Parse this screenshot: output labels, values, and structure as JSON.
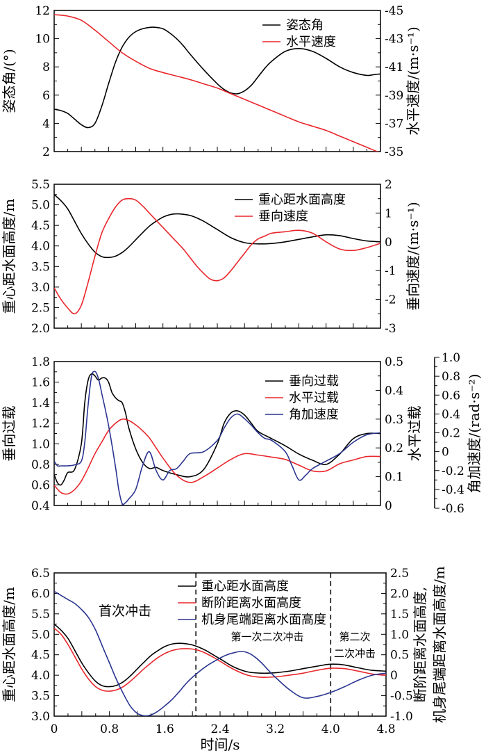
{
  "chart_data": [
    {
      "type": "line",
      "xlim": [
        0,
        4.8
      ],
      "ylim": [
        2,
        12
      ],
      "y2lim": [
        -35,
        -45
      ],
      "yticks": [
        "2",
        "4",
        "6",
        "8",
        "10",
        "12"
      ],
      "y2ticks": [
        "-35",
        "-37",
        "-39",
        "-41",
        "-43",
        "-45"
      ],
      "ylabel": "姿态角/(°)",
      "y2label": "水平速度/(m·s⁻¹)",
      "legend": "top-right",
      "series": [
        {
          "name": "姿态角",
          "color": "#000000",
          "axis": "left",
          "x": [
            0,
            0.1,
            0.2,
            0.3,
            0.4,
            0.5,
            0.6,
            0.7,
            0.8,
            0.9,
            1.0,
            1.1,
            1.2,
            1.3,
            1.4,
            1.5,
            1.6,
            1.7,
            1.8,
            1.9,
            2.0,
            2.2,
            2.4,
            2.5,
            2.6,
            2.7,
            2.8,
            2.9,
            3.0,
            3.1,
            3.2,
            3.4,
            3.6,
            3.8,
            4.0,
            4.2,
            4.4,
            4.6,
            4.7,
            4.8
          ],
          "values": [
            5.0,
            4.9,
            4.7,
            4.3,
            3.9,
            3.7,
            4.0,
            5.2,
            6.8,
            8.3,
            9.4,
            10.1,
            10.5,
            10.7,
            10.8,
            10.8,
            10.7,
            10.4,
            10.0,
            9.5,
            8.9,
            7.8,
            6.8,
            6.4,
            6.15,
            6.1,
            6.3,
            6.7,
            7.3,
            7.9,
            8.4,
            9.1,
            9.3,
            9.1,
            8.6,
            8.0,
            7.6,
            7.4,
            7.45,
            7.5
          ]
        },
        {
          "name": "水平速度",
          "color": "#e8262b",
          "axis": "right",
          "x": [
            0,
            0.2,
            0.4,
            0.6,
            0.8,
            1.0,
            1.2,
            1.4,
            1.6,
            1.8,
            2.0,
            2.2,
            2.4,
            2.6,
            2.8,
            3.0,
            3.2,
            3.4,
            3.6,
            3.8,
            4.0,
            4.2,
            4.4,
            4.6,
            4.8
          ],
          "values": [
            -44.7,
            -44.6,
            -44.3,
            -43.6,
            -42.8,
            -42.0,
            -41.4,
            -40.9,
            -40.6,
            -40.35,
            -40.1,
            -39.8,
            -39.5,
            -39.1,
            -38.7,
            -38.3,
            -37.9,
            -37.5,
            -37.1,
            -36.8,
            -36.5,
            -36.1,
            -35.7,
            -35.3,
            -34.9
          ]
        }
      ]
    },
    {
      "type": "line",
      "xlim": [
        0,
        4.8
      ],
      "ylim": [
        2.0,
        5.5
      ],
      "y2lim": [
        -3,
        2
      ],
      "yticks": [
        "2.0",
        "2.5",
        "3.0",
        "3.5",
        "4.0",
        "4.5",
        "5.0",
        "5.5"
      ],
      "y2ticks": [
        "-3",
        "-2",
        "-1",
        "0",
        "1",
        "2"
      ],
      "ylabel": "重心距水面高度/m",
      "y2label": "垂向速度/(m·s⁻¹)",
      "legend": "top-right",
      "series": [
        {
          "name": "重心距水面高度",
          "color": "#000000",
          "axis": "left",
          "x": [
            0,
            0.1,
            0.2,
            0.3,
            0.4,
            0.5,
            0.6,
            0.7,
            0.8,
            0.9,
            1.0,
            1.1,
            1.2,
            1.3,
            1.4,
            1.5,
            1.6,
            1.7,
            1.8,
            1.9,
            2.0,
            2.1,
            2.2,
            2.3,
            2.4,
            2.6,
            2.8,
            3.0,
            3.2,
            3.4,
            3.6,
            3.8,
            4.0,
            4.2,
            4.4,
            4.6,
            4.8
          ],
          "values": [
            5.25,
            5.1,
            4.9,
            4.6,
            4.3,
            4.05,
            3.85,
            3.74,
            3.72,
            3.75,
            3.84,
            3.98,
            4.15,
            4.32,
            4.48,
            4.6,
            4.7,
            4.76,
            4.78,
            4.77,
            4.74,
            4.68,
            4.6,
            4.5,
            4.4,
            4.2,
            4.08,
            4.05,
            4.06,
            4.1,
            4.16,
            4.22,
            4.27,
            4.25,
            4.18,
            4.12,
            4.1
          ]
        },
        {
          "name": "垂向速度",
          "color": "#e8262b",
          "axis": "right",
          "x": [
            0,
            0.1,
            0.2,
            0.3,
            0.4,
            0.5,
            0.6,
            0.7,
            0.8,
            0.9,
            1.0,
            1.1,
            1.2,
            1.3,
            1.4,
            1.5,
            1.6,
            1.7,
            1.8,
            1.9,
            2.0,
            2.1,
            2.2,
            2.3,
            2.4,
            2.5,
            2.6,
            2.7,
            2.8,
            2.9,
            3.0,
            3.1,
            3.2,
            3.4,
            3.6,
            3.8,
            4.0,
            4.2,
            4.4,
            4.6,
            4.8
          ],
          "values": [
            -1.6,
            -2.0,
            -2.3,
            -2.5,
            -2.2,
            -1.4,
            -0.5,
            0.3,
            0.8,
            1.2,
            1.45,
            1.5,
            1.45,
            1.25,
            1.0,
            0.75,
            0.5,
            0.25,
            0.0,
            -0.25,
            -0.55,
            -0.85,
            -1.1,
            -1.3,
            -1.35,
            -1.25,
            -1.0,
            -0.7,
            -0.4,
            -0.1,
            0.1,
            0.2,
            0.3,
            0.35,
            0.4,
            0.3,
            0.0,
            -0.25,
            -0.3,
            -0.2,
            -0.05
          ]
        }
      ]
    },
    {
      "type": "line",
      "xlim": [
        0,
        4.8
      ],
      "ylim": [
        0.4,
        1.8
      ],
      "y2lim": [
        0,
        0.5
      ],
      "y3lim": [
        -0.6,
        1.0
      ],
      "yticks": [
        "0.4",
        "0.6",
        "0.8",
        "1.0",
        "1.2",
        "1.4",
        "1.6",
        "1.8"
      ],
      "y2ticks": [
        "0",
        "0.1",
        "0.2",
        "0.3",
        "0.4",
        "0.5"
      ],
      "y3ticks": [
        "-0.6",
        "-0.4",
        "-0.2",
        "0",
        "0.2",
        "0.4",
        "0.6",
        "0.8",
        "1.0"
      ],
      "ylabel": "垂向过载",
      "y2label": "水平过载",
      "y3label": "角加速度/(rad·s⁻²)",
      "legend": "top-right",
      "series": [
        {
          "name": "垂向过载",
          "color": "#000000",
          "axis": "left",
          "x": [
            0,
            0.05,
            0.1,
            0.15,
            0.2,
            0.3,
            0.4,
            0.45,
            0.5,
            0.55,
            0.6,
            0.65,
            0.7,
            0.75,
            0.8,
            0.85,
            0.9,
            0.95,
            1.0,
            1.05,
            1.1,
            1.2,
            1.3,
            1.4,
            1.5,
            1.6,
            1.8,
            2.0,
            2.2,
            2.4,
            2.5,
            2.6,
            2.7,
            2.8,
            2.9,
            3.0,
            3.2,
            3.4,
            3.6,
            3.8,
            4.0,
            4.2,
            4.4,
            4.6,
            4.8
          ],
          "values": [
            0.7,
            0.62,
            0.6,
            0.65,
            0.72,
            0.75,
            1.0,
            1.4,
            1.62,
            1.68,
            1.66,
            1.62,
            1.64,
            1.64,
            1.6,
            1.5,
            1.45,
            1.42,
            1.4,
            1.3,
            1.15,
            0.95,
            0.82,
            0.76,
            0.77,
            0.74,
            0.7,
            0.68,
            0.75,
            1.0,
            1.2,
            1.3,
            1.32,
            1.28,
            1.2,
            1.12,
            1.05,
            0.98,
            0.9,
            0.84,
            0.8,
            0.9,
            1.05,
            1.1,
            1.1
          ]
        },
        {
          "name": "水平过载",
          "color": "#e8262b",
          "axis": "right",
          "x": [
            0,
            0.1,
            0.2,
            0.3,
            0.4,
            0.5,
            0.6,
            0.7,
            0.8,
            0.9,
            1.0,
            1.1,
            1.2,
            1.3,
            1.4,
            1.5,
            1.6,
            1.8,
            2.0,
            2.2,
            2.4,
            2.6,
            2.8,
            3.0,
            3.2,
            3.4,
            3.6,
            3.8,
            4.0,
            4.2,
            4.4,
            4.6,
            4.8
          ],
          "values": [
            0.07,
            0.045,
            0.04,
            0.055,
            0.085,
            0.13,
            0.18,
            0.22,
            0.26,
            0.285,
            0.3,
            0.295,
            0.28,
            0.26,
            0.235,
            0.2,
            0.165,
            0.105,
            0.08,
            0.1,
            0.13,
            0.16,
            0.18,
            0.175,
            0.168,
            0.16,
            0.14,
            0.12,
            0.12,
            0.145,
            0.158,
            0.17,
            0.17
          ]
        },
        {
          "name": "角加速度",
          "color": "#2b3590",
          "axis": "third",
          "x": [
            0,
            0.05,
            0.1,
            0.2,
            0.3,
            0.4,
            0.45,
            0.5,
            0.55,
            0.6,
            0.65,
            0.7,
            0.8,
            0.9,
            0.95,
            1.0,
            1.05,
            1.1,
            1.2,
            1.3,
            1.4,
            1.5,
            1.6,
            1.7,
            1.8,
            1.9,
            2.0,
            2.2,
            2.4,
            2.5,
            2.6,
            2.7,
            2.8,
            2.9,
            3.0,
            3.1,
            3.2,
            3.4,
            3.5,
            3.6,
            3.7,
            3.8,
            4.0,
            4.2,
            4.4,
            4.6,
            4.8
          ],
          "values": [
            -0.1,
            -0.15,
            -0.15,
            -0.15,
            -0.14,
            -0.1,
            0.1,
            0.5,
            0.8,
            0.85,
            0.78,
            0.62,
            0.28,
            -0.15,
            -0.4,
            -0.55,
            -0.54,
            -0.5,
            -0.4,
            -0.15,
            0.0,
            -0.2,
            -0.3,
            -0.2,
            -0.18,
            -0.1,
            -0.02,
            0.0,
            0.12,
            0.25,
            0.36,
            0.4,
            0.35,
            0.28,
            0.2,
            0.14,
            0.12,
            0.0,
            -0.15,
            -0.3,
            -0.25,
            -0.18,
            -0.1,
            -0.02,
            0.1,
            0.18,
            0.2
          ]
        }
      ]
    },
    {
      "type": "line",
      "xlim": [
        0,
        4.8
      ],
      "xticks": [
        "0",
        "0.8",
        "1.6",
        "2.4",
        "3.2",
        "4.0",
        "4.8"
      ],
      "xlabel": "时间/s",
      "ylim": [
        3.0,
        6.5
      ],
      "y2lim": [
        -1.0,
        2.5
      ],
      "yticks": [
        "3.0",
        "3.5",
        "4.0",
        "4.5",
        "5.0",
        "5.5",
        "6.0",
        "6.5"
      ],
      "y2ticks": [
        "-1.0",
        "-0.5",
        "0",
        "0.5",
        "1.0",
        "1.5",
        "2.0",
        "2.5"
      ],
      "ylabel": "重心距水面高度/m",
      "y2label_line1": "断阶距离水面高度,",
      "y2label_line2": "机身尾端距离水面高度/m",
      "legend": "top-center",
      "vlines": [
        2.05,
        4.0
      ],
      "annotations": {
        "first": "首次冲击",
        "second": "第一次二次冲击",
        "third_line1": "第二次",
        "third_line2": "二次冲击"
      },
      "series": [
        {
          "name": "重心距水面高度",
          "color": "#000000",
          "axis": "left",
          "x": [
            0,
            0.1,
            0.2,
            0.3,
            0.4,
            0.5,
            0.6,
            0.7,
            0.8,
            0.9,
            1.0,
            1.1,
            1.2,
            1.3,
            1.4,
            1.5,
            1.6,
            1.7,
            1.8,
            1.9,
            2.0,
            2.1,
            2.2,
            2.3,
            2.4,
            2.6,
            2.8,
            3.0,
            3.2,
            3.4,
            3.6,
            3.8,
            4.0,
            4.2,
            4.4,
            4.6,
            4.8
          ],
          "values": [
            5.25,
            5.1,
            4.9,
            4.6,
            4.3,
            4.05,
            3.85,
            3.74,
            3.72,
            3.75,
            3.84,
            3.98,
            4.15,
            4.32,
            4.48,
            4.6,
            4.7,
            4.76,
            4.78,
            4.77,
            4.74,
            4.68,
            4.6,
            4.5,
            4.4,
            4.2,
            4.08,
            4.05,
            4.06,
            4.1,
            4.16,
            4.22,
            4.27,
            4.25,
            4.18,
            4.12,
            4.1
          ]
        },
        {
          "name": "断阶距离水面高度",
          "color": "#e8262b",
          "axis": "left",
          "x": [
            0,
            0.1,
            0.2,
            0.3,
            0.4,
            0.5,
            0.6,
            0.7,
            0.8,
            0.9,
            1.0,
            1.1,
            1.2,
            1.3,
            1.4,
            1.5,
            1.6,
            1.7,
            1.8,
            1.9,
            2.0,
            2.1,
            2.2,
            2.3,
            2.4,
            2.6,
            2.8,
            3.0,
            3.2,
            3.4,
            3.6,
            3.8,
            4.0,
            4.2,
            4.4,
            4.6,
            4.8
          ],
          "values": [
            5.15,
            5.0,
            4.75,
            4.45,
            4.15,
            3.9,
            3.72,
            3.63,
            3.61,
            3.64,
            3.72,
            3.85,
            4.0,
            4.16,
            4.3,
            4.43,
            4.53,
            4.6,
            4.64,
            4.65,
            4.64,
            4.6,
            4.53,
            4.44,
            4.34,
            4.14,
            4.0,
            3.95,
            3.96,
            4.0,
            4.05,
            4.12,
            4.17,
            4.16,
            4.1,
            4.03,
            4.0
          ]
        },
        {
          "name": "机身尾端距离水面高度",
          "color": "#2b3590",
          "axis": "right",
          "x": [
            0,
            0.1,
            0.2,
            0.3,
            0.4,
            0.5,
            0.6,
            0.7,
            0.8,
            0.9,
            1.0,
            1.1,
            1.2,
            1.3,
            1.4,
            1.5,
            1.6,
            1.7,
            1.8,
            1.9,
            2.0,
            2.2,
            2.4,
            2.5,
            2.6,
            2.7,
            2.8,
            2.9,
            3.0,
            3.1,
            3.2,
            3.4,
            3.6,
            3.8,
            4.0,
            4.2,
            4.4,
            4.6,
            4.8
          ],
          "values": [
            2.05,
            1.95,
            1.85,
            1.75,
            1.6,
            1.4,
            1.1,
            0.7,
            0.3,
            -0.1,
            -0.45,
            -0.75,
            -0.93,
            -0.99,
            -0.97,
            -0.88,
            -0.75,
            -0.6,
            -0.42,
            -0.22,
            -0.05,
            0.22,
            0.42,
            0.5,
            0.55,
            0.58,
            0.55,
            0.45,
            0.3,
            0.12,
            -0.05,
            -0.35,
            -0.55,
            -0.52,
            -0.42,
            -0.28,
            -0.12,
            0.0,
            0.05
          ]
        }
      ]
    }
  ]
}
